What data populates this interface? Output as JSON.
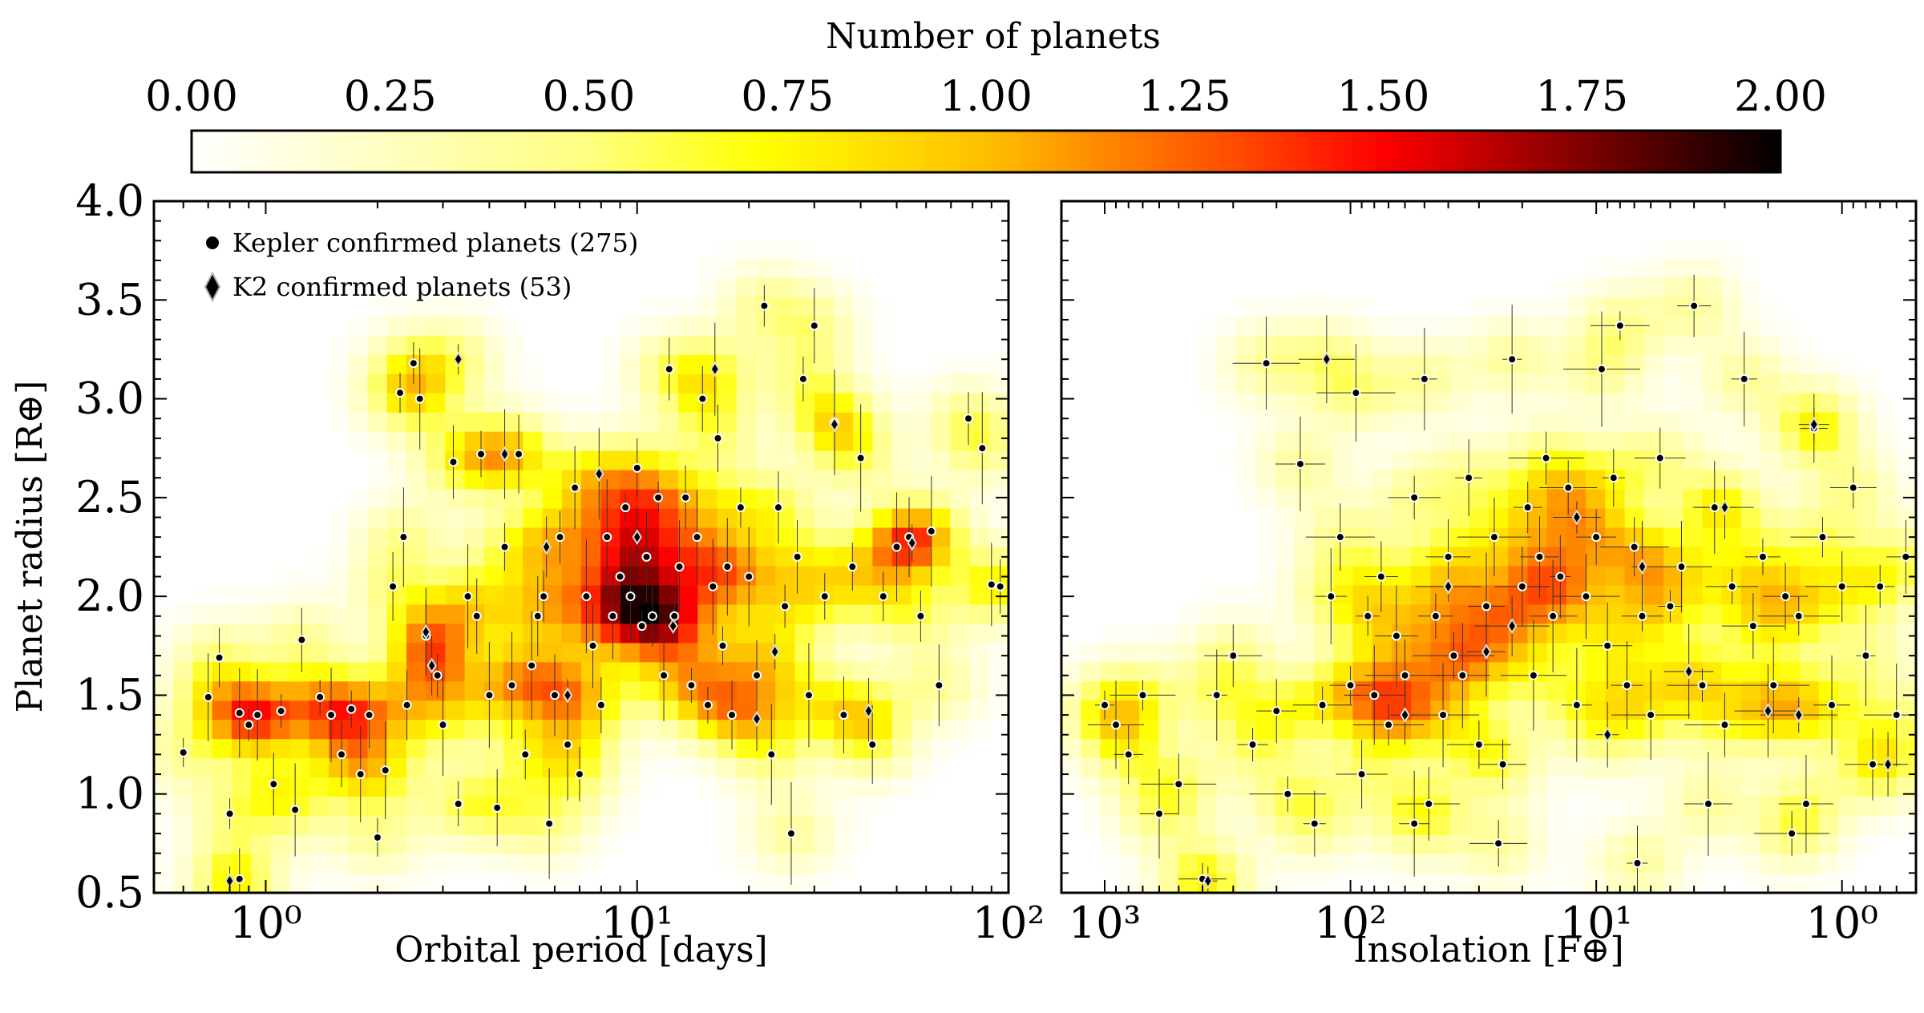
{
  "colorbar": {
    "label": "Number of planets",
    "ticks": [
      "0.00",
      "0.25",
      "0.50",
      "0.75",
      "1.00",
      "1.25",
      "1.50",
      "1.75",
      "2.00"
    ],
    "range": [
      0,
      2
    ],
    "colormap": "afmhot_r"
  },
  "legend": {
    "position": "upper-left",
    "entries": [
      {
        "marker": "circle",
        "label": "Kepler confirmed planets (275)"
      },
      {
        "marker": "diamond",
        "label": "K2 confirmed planets (53)"
      }
    ]
  },
  "chart_data": [
    {
      "type": "scatter",
      "panel": "left",
      "xlabel": "Orbital period [days]",
      "ylabel": "Planet radius [R⊕]",
      "xscale": "log",
      "xlim": [
        0.5,
        100
      ],
      "ylim": [
        0.5,
        4.0
      ],
      "xticklabels": [
        "10⁰",
        "10¹",
        "10²"
      ],
      "yticklabels": [
        "0.5",
        "1.0",
        "1.5",
        "2.0",
        "2.5",
        "3.0",
        "3.5",
        "4.0"
      ],
      "background": "2D density histogram (Number of planets)",
      "series": [
        {
          "name": "Kepler confirmed planets (275)",
          "marker": "circle",
          "points": [
            [
              0.6,
              1.21
            ],
            [
              0.7,
              1.49
            ],
            [
              0.75,
              1.69
            ],
            [
              0.8,
              0.9
            ],
            [
              0.85,
              1.41
            ],
            [
              0.85,
              0.57
            ],
            [
              0.9,
              1.35
            ],
            [
              0.95,
              1.4
            ],
            [
              1.05,
              1.05
            ],
            [
              1.1,
              1.42
            ],
            [
              1.2,
              0.92
            ],
            [
              1.25,
              1.78
            ],
            [
              1.4,
              1.49
            ],
            [
              1.5,
              1.4
            ],
            [
              1.6,
              1.2
            ],
            [
              1.7,
              1.43
            ],
            [
              1.8,
              1.1
            ],
            [
              1.9,
              1.4
            ],
            [
              2.0,
              0.78
            ],
            [
              2.1,
              1.12
            ],
            [
              2.2,
              2.05
            ],
            [
              2.3,
              3.03
            ],
            [
              2.35,
              2.3
            ],
            [
              2.4,
              1.45
            ],
            [
              2.5,
              3.18
            ],
            [
              2.6,
              3.0
            ],
            [
              2.7,
              1.8
            ],
            [
              2.9,
              1.6
            ],
            [
              3.0,
              1.35
            ],
            [
              3.2,
              2.68
            ],
            [
              3.3,
              0.95
            ],
            [
              3.5,
              2.0
            ],
            [
              3.7,
              1.9
            ],
            [
              3.8,
              2.72
            ],
            [
              4.0,
              1.5
            ],
            [
              4.2,
              0.93
            ],
            [
              4.4,
              2.25
            ],
            [
              4.6,
              1.55
            ],
            [
              4.8,
              2.72
            ],
            [
              5.0,
              1.2
            ],
            [
              5.2,
              1.65
            ],
            [
              5.4,
              1.9
            ],
            [
              5.6,
              2.0
            ],
            [
              5.8,
              0.85
            ],
            [
              6.0,
              1.5
            ],
            [
              6.2,
              2.3
            ],
            [
              6.5,
              1.25
            ],
            [
              6.8,
              2.55
            ],
            [
              7.0,
              1.1
            ],
            [
              7.3,
              2.0
            ],
            [
              7.6,
              1.75
            ],
            [
              8.0,
              1.45
            ],
            [
              8.3,
              2.3
            ],
            [
              8.6,
              1.9
            ],
            [
              9.0,
              2.1
            ],
            [
              9.3,
              2.45
            ],
            [
              9.6,
              2.0
            ],
            [
              10.0,
              2.65
            ],
            [
              10.3,
              1.85
            ],
            [
              10.6,
              2.2
            ],
            [
              11.0,
              1.9
            ],
            [
              11.4,
              2.5
            ],
            [
              11.8,
              1.6
            ],
            [
              12.2,
              3.15
            ],
            [
              12.6,
              1.9
            ],
            [
              13.0,
              2.15
            ],
            [
              13.5,
              2.5
            ],
            [
              14.0,
              1.55
            ],
            [
              14.5,
              2.3
            ],
            [
              15.0,
              3.0
            ],
            [
              15.5,
              1.45
            ],
            [
              16.0,
              2.05
            ],
            [
              16.5,
              2.8
            ],
            [
              17.0,
              1.75
            ],
            [
              17.5,
              2.15
            ],
            [
              18.0,
              1.4
            ],
            [
              19.0,
              2.45
            ],
            [
              20.0,
              2.1
            ],
            [
              21.0,
              1.6
            ],
            [
              22.0,
              3.47
            ],
            [
              23.0,
              1.2
            ],
            [
              24.0,
              2.45
            ],
            [
              25.0,
              1.95
            ],
            [
              26.0,
              0.8
            ],
            [
              27.0,
              2.2
            ],
            [
              28.0,
              3.1
            ],
            [
              29.0,
              1.5
            ],
            [
              30.0,
              3.37
            ],
            [
              32.0,
              2.0
            ],
            [
              34.0,
              2.88
            ],
            [
              36.0,
              1.4
            ],
            [
              38.0,
              2.15
            ],
            [
              40.0,
              2.7
            ],
            [
              43.0,
              1.25
            ],
            [
              46.0,
              2.0
            ],
            [
              50.0,
              2.25
            ],
            [
              54.0,
              2.3
            ],
            [
              58.0,
              1.9
            ],
            [
              62.0,
              2.33
            ],
            [
              65.0,
              1.55
            ],
            [
              78.0,
              2.9
            ],
            [
              85.0,
              2.75
            ],
            [
              90.0,
              2.06
            ],
            [
              95.0,
              2.05
            ]
          ]
        },
        {
          "name": "K2 confirmed planets (53)",
          "marker": "diamond",
          "points": [
            [
              0.8,
              0.56
            ],
            [
              2.7,
              1.82
            ],
            [
              2.8,
              1.65
            ],
            [
              3.3,
              3.2
            ],
            [
              4.4,
              2.72
            ],
            [
              5.7,
              2.25
            ],
            [
              6.5,
              1.5
            ],
            [
              7.9,
              2.62
            ],
            [
              10.0,
              2.3
            ],
            [
              12.5,
              1.85
            ],
            [
              16.2,
              3.15
            ],
            [
              21.0,
              1.38
            ],
            [
              23.5,
              1.72
            ],
            [
              34.0,
              2.87
            ],
            [
              42.0,
              1.42
            ],
            [
              55.0,
              2.27
            ]
          ]
        }
      ]
    },
    {
      "type": "scatter",
      "panel": "right",
      "xlabel": "Insolation [F⊕]",
      "ylabel": "",
      "xscale": "log",
      "xreversed": true,
      "xlim": [
        1500,
        0.5
      ],
      "ylim": [
        0.5,
        4.0
      ],
      "xticklabels": [
        "10³",
        "10²",
        "10¹",
        "10⁰"
      ],
      "background": "2D density histogram (Number of planets)",
      "series": [
        {
          "name": "Kepler confirmed planets (275)",
          "marker": "circle",
          "points": [
            [
              1000,
              1.45
            ],
            [
              900,
              1.35
            ],
            [
              800,
              1.2
            ],
            [
              700,
              1.5
            ],
            [
              600,
              0.9
            ],
            [
              500,
              1.05
            ],
            [
              400,
              0.57
            ],
            [
              350,
              1.5
            ],
            [
              300,
              1.7
            ],
            [
              250,
              1.25
            ],
            [
              220,
              3.18
            ],
            [
              200,
              1.42
            ],
            [
              180,
              1.0
            ],
            [
              160,
              2.67
            ],
            [
              140,
              0.85
            ],
            [
              130,
              1.45
            ],
            [
              120,
              2.0
            ],
            [
              110,
              2.3
            ],
            [
              100,
              1.55
            ],
            [
              95,
              3.03
            ],
            [
              90,
              1.1
            ],
            [
              85,
              1.9
            ],
            [
              80,
              1.5
            ],
            [
              75,
              2.1
            ],
            [
              70,
              1.35
            ],
            [
              65,
              1.8
            ],
            [
              60,
              1.6
            ],
            [
              55,
              2.5
            ],
            [
              50,
              3.1
            ],
            [
              48,
              0.95
            ],
            [
              45,
              1.9
            ],
            [
              42,
              1.4
            ],
            [
              40,
              2.2
            ],
            [
              38,
              1.7
            ],
            [
              35,
              1.6
            ],
            [
              33,
              2.6
            ],
            [
              30,
              1.25
            ],
            [
              28,
              1.95
            ],
            [
              26,
              2.3
            ],
            [
              24,
              1.15
            ],
            [
              22,
              3.2
            ],
            [
              20,
              2.05
            ],
            [
              19,
              2.45
            ],
            [
              18,
              1.6
            ],
            [
              17,
              2.2
            ],
            [
              16,
              2.7
            ],
            [
              15,
              1.9
            ],
            [
              14,
              2.1
            ],
            [
              13,
              2.55
            ],
            [
              12,
              1.45
            ],
            [
              11,
              2.0
            ],
            [
              10,
              2.3
            ],
            [
              9.5,
              3.15
            ],
            [
              9,
              1.75
            ],
            [
              8.5,
              2.6
            ],
            [
              8,
              3.37
            ],
            [
              7.5,
              1.55
            ],
            [
              7,
              2.25
            ],
            [
              6.5,
              1.9
            ],
            [
              6,
              1.4
            ],
            [
              5.5,
              2.7
            ],
            [
              5,
              1.95
            ],
            [
              4.5,
              2.15
            ],
            [
              4,
              3.47
            ],
            [
              3.7,
              1.55
            ],
            [
              3.3,
              2.45
            ],
            [
              3,
              1.35
            ],
            [
              2.8,
              2.05
            ],
            [
              2.5,
              3.1
            ],
            [
              2.3,
              1.85
            ],
            [
              2.1,
              2.2
            ],
            [
              1.9,
              1.55
            ],
            [
              1.7,
              2.0
            ],
            [
              1.5,
              1.9
            ],
            [
              1.4,
              0.95
            ],
            [
              1.3,
              2.85
            ],
            [
              1.2,
              2.3
            ],
            [
              1.1,
              1.45
            ],
            [
              1.0,
              2.05
            ],
            [
              0.9,
              2.55
            ],
            [
              0.8,
              1.7
            ],
            [
              0.75,
              1.15
            ],
            [
              0.7,
              2.05
            ],
            [
              0.6,
              1.4
            ],
            [
              0.55,
              2.2
            ],
            [
              1.6,
              0.8
            ],
            [
              3.5,
              0.95
            ],
            [
              6.8,
              0.65
            ],
            [
              25,
              0.75
            ],
            [
              55,
              0.85
            ]
          ]
        },
        {
          "name": "K2 confirmed planets (53)",
          "marker": "diamond",
          "points": [
            [
              380,
              0.56
            ],
            [
              125,
              3.2
            ],
            [
              60,
              1.4
            ],
            [
              40,
              2.05
            ],
            [
              28,
              1.72
            ],
            [
              22,
              1.85
            ],
            [
              12,
              2.4
            ],
            [
              6.5,
              2.15
            ],
            [
              3.0,
              2.45
            ],
            [
              1.3,
              2.87
            ],
            [
              2.0,
              1.42
            ],
            [
              0.65,
              1.15
            ],
            [
              1.5,
              1.4
            ],
            [
              4.2,
              1.62
            ],
            [
              9.0,
              1.3
            ]
          ]
        }
      ]
    }
  ]
}
